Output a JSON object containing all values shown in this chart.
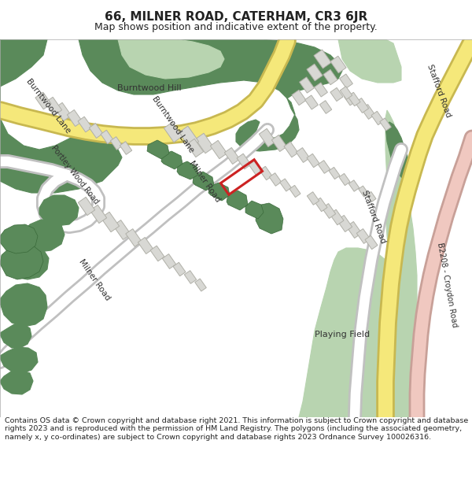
{
  "title": "66, MILNER ROAD, CATERHAM, CR3 6JR",
  "subtitle": "Map shows position and indicative extent of the property.",
  "footer": "Contains OS data © Crown copyright and database right 2021. This information is subject to Crown copyright and database rights 2023 and is reproduced with the permission of HM Land Registry. The polygons (including the associated geometry, namely x, y co-ordinates) are subject to Crown copyright and database rights 2023 Ordnance Survey 100026316.",
  "bg_color": "#ffffff",
  "map_bg": "#f2f2ee",
  "green_dark": "#5a8a5a",
  "green_light": "#b8d4b0",
  "green_mid": "#7aaa7a",
  "road_yellow_fill": "#f5e87a",
  "road_yellow_edge": "#c8b850",
  "road_white_fill": "#ffffff",
  "road_white_edge": "#c0c0c0",
  "building_fill": "#d8d8d4",
  "building_edge": "#b0b0a8",
  "red_outline": "#cc2222",
  "pink_road_fill": "#f0c8c0",
  "pink_road_edge": "#c8a098",
  "text_dark": "#222222",
  "title_fontsize": 11,
  "subtitle_fontsize": 9,
  "footer_fontsize": 6.8
}
